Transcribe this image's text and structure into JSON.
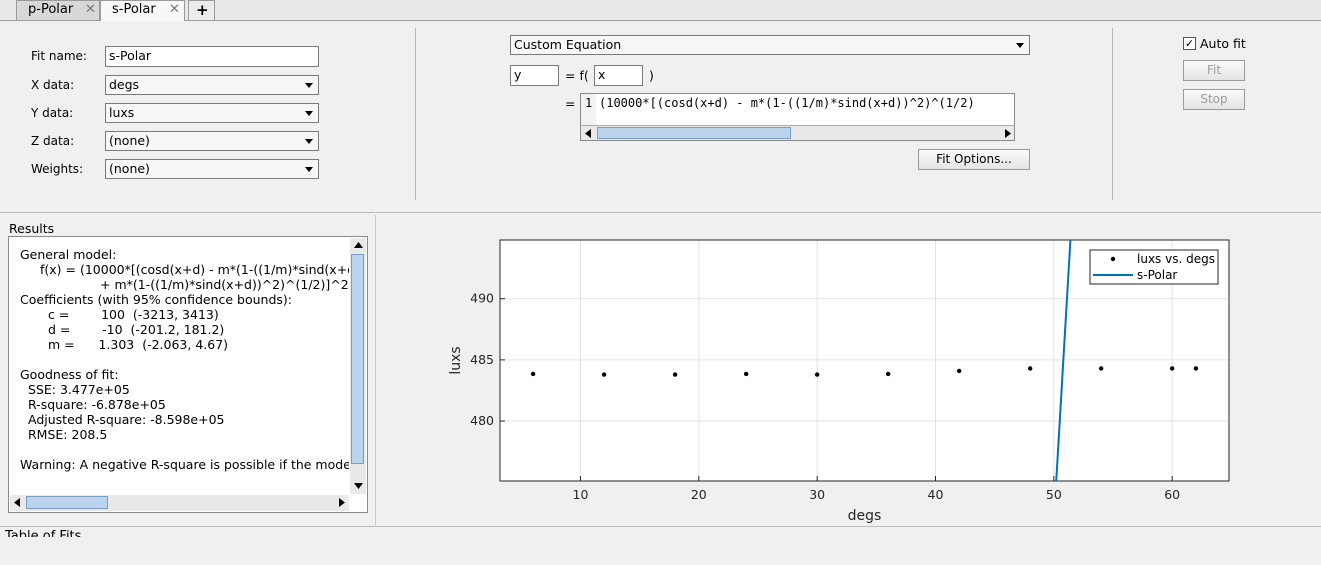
{
  "tabs": [
    "p-Polar",
    "s-Polar"
  ],
  "new_tab": "+",
  "fit_form": [
    {
      "label": "Fit name:",
      "value": "s-Polar"
    },
    {
      "label": "X data:",
      "value": "degs"
    },
    {
      "label": "Y data:",
      "value": "luxs"
    },
    {
      "label": "Z data:",
      "value": "(none)"
    },
    {
      "label": "Weights:",
      "value": "(none)"
    }
  ],
  "equation": {
    "type_select": "Custom Equation",
    "output": "y",
    "function_prefix": "= f(",
    "input": "x",
    "function_suffix": ")",
    "equals": "=",
    "line_number": "1",
    "expression": "(10000*[(cosd(x+d) - m*(1-((1/m)*sind(x+d))^2)^(1/2)",
    "options_button": "Fit Options..."
  },
  "fit_controls": {
    "auto_fit": "Auto fit",
    "fit_button": "Fit",
    "stop_button": "Stop"
  },
  "results": {
    "title": "Results",
    "general_model_heading": "General model:",
    "model_lines": [
      "f(x) = (10000*[(cosd(x+d) - m*(1-((1/m)*sind(x+d",
      "+ m*(1-((1/m)*sind(x+d))^2)^(1/2)]^2"
    ],
    "coefficients_heading": "Coefficients (with 95% confidence bounds):",
    "coefficients": [
      "c =        100  (-3213, 3413)",
      "d =        -10  (-201.2, 181.2)",
      "m =      1.303  (-2.063, 4.67)"
    ],
    "goodness_heading": "Goodness of fit:",
    "goodness": [
      "SSE: 3.477e+05",
      "R-square: -6.878e+05",
      "Adjusted R-square: -8.598e+05",
      "RMSE: 208.5"
    ],
    "warning": "Warning: A negative R-square is possible if the mode"
  },
  "chart_data": {
    "type": "scatter",
    "xlabel": "degs",
    "ylabel": "luxs",
    "xlim": [
      3.2,
      64.8
    ],
    "ylim": [
      475.1,
      494.8
    ],
    "xticks": [
      10,
      20,
      30,
      40,
      50,
      60
    ],
    "yticks": [
      480,
      485,
      490
    ],
    "grid": true,
    "legend": "northeast",
    "series": [
      {
        "name": "luxs vs. degs",
        "type": "scatter",
        "color": "#000000",
        "x": [
          6,
          12,
          18,
          24,
          30,
          36,
          42,
          48,
          54,
          60,
          62
        ],
        "values": [
          483.85,
          483.8,
          483.8,
          483.85,
          483.8,
          483.85,
          484.1,
          484.3,
          484.3,
          484.3,
          484.3
        ]
      },
      {
        "name": "s-Polar",
        "type": "line",
        "color": "#0072bd",
        "x": [
          50.2,
          51.4
        ],
        "values": [
          475.1,
          494.8
        ]
      }
    ]
  },
  "footer": {
    "title": "Table of Fits"
  }
}
